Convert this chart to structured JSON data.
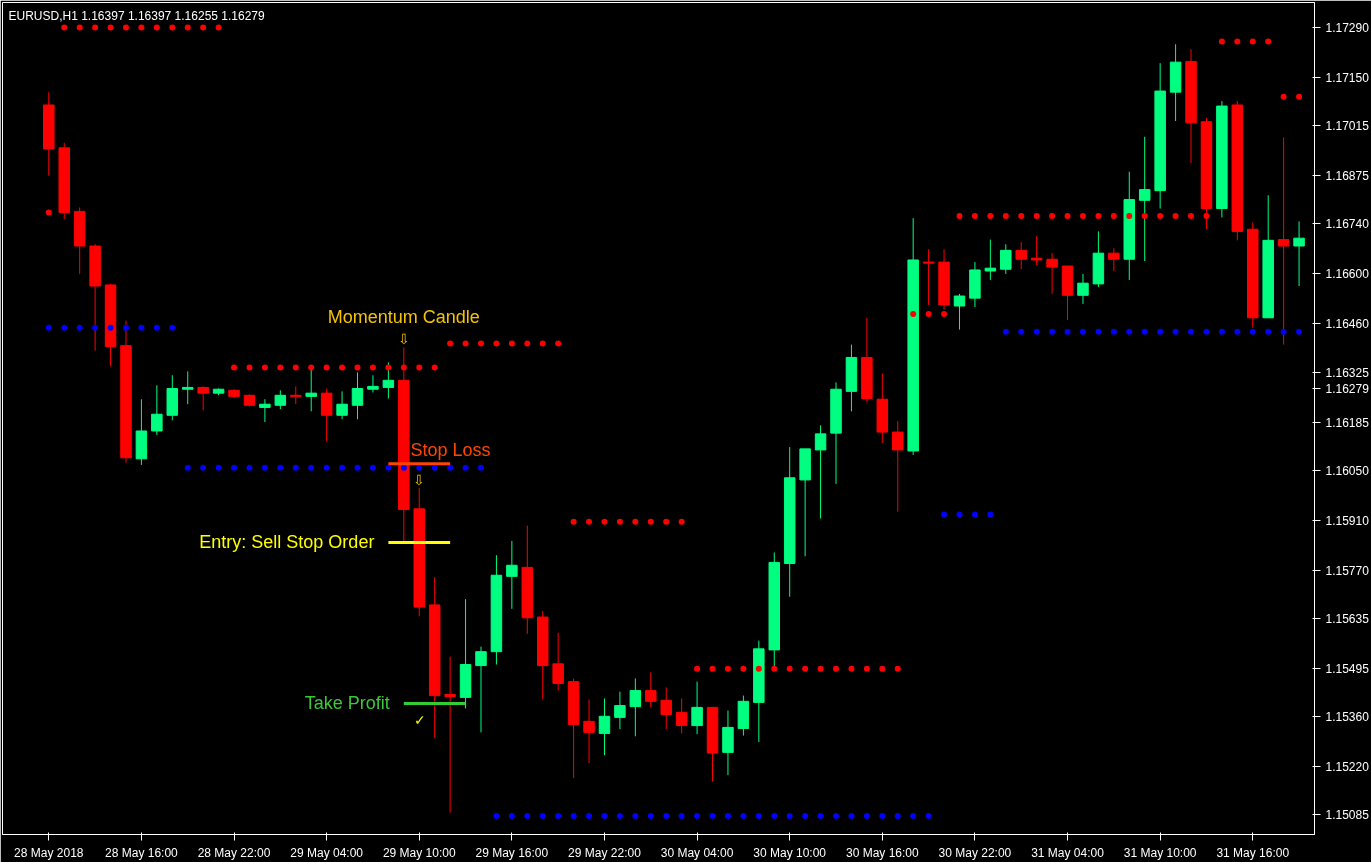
{
  "chart_data": {
    "type": "candlestick",
    "title": "EURUSD,H1  1.16397 1.16397 1.16255 1.16279",
    "x": [
      "2018-05-28T10:00",
      "2018-05-28T11:00",
      "2018-05-28T12:00",
      "2018-05-28T13:00",
      "2018-05-28T14:00",
      "2018-05-28T15:00",
      "2018-05-28T16:00",
      "2018-05-28T17:00",
      "2018-05-28T18:00",
      "2018-05-28T19:00",
      "2018-05-28T20:00",
      "2018-05-28T21:00",
      "2018-05-28T22:00",
      "2018-05-28T23:00",
      "2018-05-29T00:00",
      "2018-05-29T01:00",
      "2018-05-29T02:00",
      "2018-05-29T03:00",
      "2018-05-29T04:00",
      "2018-05-29T05:00",
      "2018-05-29T06:00",
      "2018-05-29T07:00",
      "2018-05-29T08:00",
      "2018-05-29T09:00",
      "2018-05-29T10:00",
      "2018-05-29T11:00",
      "2018-05-29T12:00",
      "2018-05-29T13:00",
      "2018-05-29T14:00",
      "2018-05-29T15:00",
      "2018-05-29T16:00",
      "2018-05-29T17:00",
      "2018-05-29T18:00",
      "2018-05-29T19:00",
      "2018-05-29T20:00",
      "2018-05-29T21:00",
      "2018-05-29T22:00",
      "2018-05-29T23:00",
      "2018-05-30T00:00",
      "2018-05-30T01:00",
      "2018-05-30T02:00",
      "2018-05-30T03:00",
      "2018-05-30T04:00",
      "2018-05-30T05:00",
      "2018-05-30T06:00",
      "2018-05-30T07:00",
      "2018-05-30T08:00",
      "2018-05-30T09:00",
      "2018-05-30T10:00",
      "2018-05-30T11:00",
      "2018-05-30T12:00",
      "2018-05-30T13:00",
      "2018-05-30T14:00",
      "2018-05-30T15:00",
      "2018-05-30T16:00",
      "2018-05-30T17:00",
      "2018-05-30T18:00",
      "2018-05-30T19:00",
      "2018-05-30T20:00",
      "2018-05-30T21:00",
      "2018-05-30T22:00",
      "2018-05-30T23:00",
      "2018-05-31T00:00",
      "2018-05-31T01:00",
      "2018-05-31T02:00",
      "2018-05-31T03:00",
      "2018-05-31T04:00",
      "2018-05-31T05:00",
      "2018-05-31T06:00",
      "2018-05-31T07:00",
      "2018-05-31T08:00",
      "2018-05-31T09:00",
      "2018-05-31T10:00",
      "2018-05-31T11:00",
      "2018-05-31T12:00",
      "2018-05-31T13:00",
      "2018-05-31T14:00",
      "2018-05-31T15:00",
      "2018-05-31T16:00",
      "2018-05-31T17:00",
      "2018-05-31T18:00",
      "2018-05-31T19:00"
    ],
    "ohlc": [
      [
        1.17073,
        1.17109,
        1.16875,
        1.1695
      ],
      [
        1.16953,
        1.16967,
        1.16753,
        1.16772
      ],
      [
        1.16775,
        1.16786,
        1.166,
        1.16678
      ],
      [
        1.16678,
        1.16683,
        1.16385,
        1.16566
      ],
      [
        1.16569,
        1.16572,
        1.16341,
        1.16396
      ],
      [
        1.16399,
        1.16469,
        1.16071,
        1.16085
      ],
      [
        1.16082,
        1.16249,
        1.16065,
        1.1616
      ],
      [
        1.1616,
        1.16288,
        1.16149,
        1.16207
      ],
      [
        1.16204,
        1.16316,
        1.1619,
        1.16279
      ],
      [
        1.16277,
        1.16327,
        1.16235,
        1.16282
      ],
      [
        1.16282,
        1.16285,
        1.16218,
        1.16266
      ],
      [
        1.16266,
        1.16279,
        1.1626,
        1.16277
      ],
      [
        1.16274,
        1.16277,
        1.16252,
        1.16257
      ],
      [
        1.1626,
        1.16263,
        1.16229,
        1.16232
      ],
      [
        1.16226,
        1.16249,
        1.16185,
        1.16235
      ],
      [
        1.16232,
        1.16274,
        1.16221,
        1.1626
      ],
      [
        1.1626,
        1.16285,
        1.16235,
        1.16257
      ],
      [
        1.16257,
        1.16335,
        1.16215,
        1.16266
      ],
      [
        1.16266,
        1.16279,
        1.16131,
        1.16204
      ],
      [
        1.16204,
        1.16271,
        1.16193,
        1.16235
      ],
      [
        1.16232,
        1.16324,
        1.16193,
        1.16279
      ],
      [
        1.16277,
        1.16316,
        1.16268,
        1.16285
      ],
      [
        1.16282,
        1.16352,
        1.16251,
        1.16302
      ],
      [
        1.16302,
        1.16394,
        1.15851,
        1.1594
      ],
      [
        1.15942,
        1.16001,
        1.15641,
        1.15667
      ],
      [
        1.15673,
        1.15751,
        1.153,
        1.15419
      ],
      [
        1.15422,
        1.15528,
        1.15091,
        1.15416
      ],
      [
        1.15414,
        1.15689,
        1.15383,
        1.15506
      ],
      [
        1.15503,
        1.15556,
        1.15316,
        1.15542
      ],
      [
        1.15542,
        1.15812,
        1.15506,
        1.15756
      ],
      [
        1.15753,
        1.15852,
        1.15662,
        1.15784
      ],
      [
        1.15778,
        1.15895,
        1.15592,
        1.15637
      ],
      [
        1.15639,
        1.15656,
        1.15408,
        1.15503
      ],
      [
        1.15508,
        1.15595,
        1.15433,
        1.15453
      ],
      [
        1.15458,
        1.15467,
        1.15188,
        1.15338
      ],
      [
        1.15347,
        1.15408,
        1.1523,
        1.15316
      ],
      [
        1.15313,
        1.15411,
        1.15252,
        1.15361
      ],
      [
        1.15358,
        1.1543,
        1.15325,
        1.15391
      ],
      [
        1.15388,
        1.15467,
        1.15305,
        1.15433
      ],
      [
        1.15433,
        1.15484,
        1.15386,
        1.15403
      ],
      [
        1.15406,
        1.15442,
        1.15325,
        1.15366
      ],
      [
        1.15372,
        1.15411,
        1.15313,
        1.15335
      ],
      [
        1.15335,
        1.15458,
        1.15311,
        1.15386
      ],
      [
        1.15386,
        1.15386,
        1.15178,
        1.15258
      ],
      [
        1.1526,
        1.15377,
        1.15196,
        1.1533
      ],
      [
        1.15327,
        1.15419,
        1.15307,
        1.15403
      ],
      [
        1.154,
        1.15573,
        1.15289,
        1.1555
      ],
      [
        1.15547,
        1.1582,
        1.15497,
        1.15792
      ],
      [
        1.15789,
        1.16115,
        1.15696,
        1.16029
      ],
      [
        1.16023,
        1.1611,
        1.15809,
        1.1611
      ],
      [
        1.16107,
        1.16176,
        1.15915,
        1.16152
      ],
      [
        1.16154,
        1.16296,
        1.16012,
        1.16277
      ],
      [
        1.16271,
        1.16402,
        1.16215,
        1.16366
      ],
      [
        1.16366,
        1.16477,
        1.1624,
        1.16251
      ],
      [
        1.16249,
        1.16321,
        1.16126,
        1.16157
      ],
      [
        1.16157,
        1.16188,
        1.15934,
        1.16107
      ],
      [
        1.16104,
        1.16756,
        1.16093,
        1.16639
      ],
      [
        1.16633,
        1.16669,
        1.16513,
        1.1663
      ],
      [
        1.16633,
        1.16669,
        1.16499,
        1.16513
      ],
      [
        1.1651,
        1.16544,
        1.16444,
        1.16538
      ],
      [
        1.16532,
        1.16633,
        1.16507,
        1.16611
      ],
      [
        1.16608,
        1.16696,
        1.16583,
        1.16616
      ],
      [
        1.16613,
        1.16683,
        1.166,
        1.16666
      ],
      [
        1.16666,
        1.16689,
        1.16613,
        1.16641
      ],
      [
        1.16644,
        1.16706,
        1.16624,
        1.16639
      ],
      [
        1.16641,
        1.16658,
        1.16544,
        1.16619
      ],
      [
        1.16622,
        1.16622,
        1.16471,
        1.1654
      ],
      [
        1.1654,
        1.166,
        1.16516,
        1.16574
      ],
      [
        1.16572,
        1.16719,
        1.16563,
        1.16658
      ],
      [
        1.16658,
        1.16672,
        1.16608,
        1.16641
      ],
      [
        1.16641,
        1.16886,
        1.16583,
        1.16808
      ],
      [
        1.16806,
        1.16984,
        1.16636,
        1.16836
      ],
      [
        1.16833,
        1.1719,
        1.16783,
        1.17112
      ],
      [
        1.17109,
        1.17243,
        1.17028,
        1.17193
      ],
      [
        1.17195,
        1.17229,
        1.16911,
        1.17023
      ],
      [
        1.17026,
        1.17037,
        1.16725,
        1.16783
      ],
      [
        1.16783,
        1.17084,
        1.16758,
        1.1707
      ],
      [
        1.17073,
        1.17084,
        1.16694,
        1.16719
      ],
      [
        1.16725,
        1.16744,
        1.16449,
        1.16477
      ],
      [
        1.16477,
        1.1682,
        1.16477,
        1.16694
      ],
      [
        1.16696,
        1.16982,
        1.16402,
        1.16678
      ],
      [
        1.16678,
        1.16747,
        1.16566,
        1.167
      ]
    ],
    "colors": [
      "#ff0000",
      "#ff0000",
      "#ff0000",
      "#ff0000",
      "#ff0000",
      "#ff0000",
      "#00ff80",
      "#00ff80",
      "#00ff80",
      "#00ff80",
      "#ff0000",
      "#00ff80",
      "#ff0000",
      "#ff0000",
      "#00ff80",
      "#00ff80",
      "#ff0000",
      "#00ff80",
      "#ff0000",
      "#00ff80",
      "#00ff80",
      "#00ff80",
      "#00ff80",
      "#ff0000",
      "#ff0000",
      "#ff0000",
      "#ff0000",
      "#00ff80",
      "#00ff80",
      "#00ff80",
      "#00ff80",
      "#ff0000",
      "#ff0000",
      "#ff0000",
      "#ff0000",
      "#ff0000",
      "#00ff80",
      "#00ff80",
      "#00ff80",
      "#ff0000",
      "#ff0000",
      "#ff0000",
      "#00ff80",
      "#ff0000",
      "#00ff80",
      "#00ff80",
      "#00ff80",
      "#00ff80",
      "#00ff80",
      "#00ff80",
      "#00ff80",
      "#00ff80",
      "#00ff80",
      "#ff0000",
      "#ff0000",
      "#ff0000",
      "#00ff80",
      "#ff0000",
      "#ff0000",
      "#00ff80",
      "#00ff80",
      "#00ff80",
      "#00ff80",
      "#ff0000",
      "#ff0000",
      "#ff0000",
      "#ff0000",
      "#00ff80",
      "#00ff80",
      "#ff0000",
      "#00ff80",
      "#00ff80",
      "#00ff80",
      "#00ff80",
      "#ff0000",
      "#ff0000",
      "#00ff80",
      "#ff0000",
      "#ff0000",
      "#00ff80",
      "#ff0000",
      "#00ff80"
    ],
    "series": [
      {
        "type": "scatter",
        "marker": "circle",
        "color": "#ff0000",
        "x": [
          "2018-05-28T11:00",
          "2018-05-28T12:00",
          "2018-05-28T13:00",
          "2018-05-28T14:00",
          "2018-05-28T15:00",
          "2018-05-28T16:00",
          "2018-05-28T17:00",
          "2018-05-28T18:00",
          "2018-05-28T19:00",
          "2018-05-28T20:00",
          "2018-05-28T21:00"
        ],
        "values": [
          1.1729,
          1.1729,
          1.1729,
          1.1729,
          1.1729,
          1.1729,
          1.1729,
          1.1729,
          1.1729,
          1.1729,
          1.1729
        ]
      },
      {
        "type": "scatter",
        "marker": "circle",
        "color": "#ff0000",
        "x": [
          "2018-05-28T10:00"
        ],
        "values": [
          1.16772
        ]
      },
      {
        "type": "scatter",
        "marker": "circle",
        "color": "#ff0000",
        "x": [
          "2018-05-28T22:00",
          "2018-05-28T23:00",
          "2018-05-29T00:00",
          "2018-05-29T01:00",
          "2018-05-29T02:00",
          "2018-05-29T03:00",
          "2018-05-29T04:00",
          "2018-05-29T05:00",
          "2018-05-29T06:00",
          "2018-05-29T07:00",
          "2018-05-29T08:00",
          "2018-05-29T09:00",
          "2018-05-29T10:00",
          "2018-05-29T11:00"
        ],
        "values": [
          1.16338,
          1.16338,
          1.16338,
          1.16338,
          1.16338,
          1.16338,
          1.16338,
          1.16338,
          1.16338,
          1.16338,
          1.16338,
          1.16338,
          1.16338,
          1.16338
        ]
      },
      {
        "type": "scatter",
        "marker": "circle",
        "color": "#ff0000",
        "x": [
          "2018-05-29T12:00",
          "2018-05-29T13:00",
          "2018-05-29T14:00",
          "2018-05-29T15:00",
          "2018-05-29T16:00",
          "2018-05-29T17:00",
          "2018-05-29T18:00",
          "2018-05-29T19:00"
        ],
        "values": [
          1.16405,
          1.16405,
          1.16405,
          1.16405,
          1.16405,
          1.16405,
          1.16405,
          1.16405
        ]
      },
      {
        "type": "scatter",
        "marker": "circle",
        "color": "#ff0000",
        "x": [
          "2018-05-29T20:00",
          "2018-05-29T21:00",
          "2018-05-29T22:00",
          "2018-05-29T23:00",
          "2018-05-30T00:00",
          "2018-05-30T01:00",
          "2018-05-30T02:00",
          "2018-05-30T03:00"
        ],
        "values": [
          1.15906,
          1.15906,
          1.15906,
          1.15906,
          1.15906,
          1.15906,
          1.15906,
          1.15906
        ]
      },
      {
        "type": "scatter",
        "marker": "circle",
        "color": "#ff0000",
        "x": [
          "2018-05-30T04:00",
          "2018-05-30T05:00",
          "2018-05-30T06:00",
          "2018-05-30T07:00",
          "2018-05-30T08:00",
          "2018-05-30T09:00",
          "2018-05-30T10:00",
          "2018-05-30T11:00",
          "2018-05-30T12:00",
          "2018-05-30T13:00",
          "2018-05-30T14:00",
          "2018-05-30T15:00",
          "2018-05-30T16:00",
          "2018-05-30T17:00"
        ],
        "values": [
          1.15494,
          1.15494,
          1.15494,
          1.15494,
          1.15494,
          1.15494,
          1.15494,
          1.15494,
          1.15494,
          1.15494,
          1.15494,
          1.15494,
          1.15494,
          1.15494
        ]
      },
      {
        "type": "scatter",
        "marker": "circle",
        "color": "#ff0000",
        "x": [
          "2018-05-30T18:00",
          "2018-05-30T19:00",
          "2018-05-30T20:00"
        ],
        "values": [
          1.16488,
          1.16488,
          1.16488
        ]
      },
      {
        "type": "scatter",
        "marker": "circle",
        "color": "#ff0000",
        "x": [
          "2018-05-30T21:00",
          "2018-05-30T22:00",
          "2018-05-30T23:00",
          "2018-05-31T00:00",
          "2018-05-31T01:00",
          "2018-05-31T02:00",
          "2018-05-31T03:00",
          "2018-05-31T04:00",
          "2018-05-31T05:00",
          "2018-05-31T06:00",
          "2018-05-31T07:00",
          "2018-05-31T08:00",
          "2018-05-31T09:00",
          "2018-05-31T10:00",
          "2018-05-31T11:00",
          "2018-05-31T12:00",
          "2018-05-31T13:00"
        ],
        "values": [
          1.16762,
          1.16762,
          1.16762,
          1.16762,
          1.16762,
          1.16762,
          1.16762,
          1.16762,
          1.16762,
          1.16762,
          1.16762,
          1.16762,
          1.16762,
          1.16762,
          1.16762,
          1.16762,
          1.16762
        ]
      },
      {
        "type": "scatter",
        "marker": "circle",
        "color": "#ff0000",
        "x": [
          "2018-05-31T14:00",
          "2018-05-31T15:00",
          "2018-05-31T16:00",
          "2018-05-31T17:00"
        ],
        "values": [
          1.17251,
          1.17251,
          1.17251,
          1.17251
        ]
      },
      {
        "type": "scatter",
        "marker": "circle",
        "color": "#ff0000",
        "x": [
          "2018-05-31T18:00",
          "2018-05-31T19:00"
        ],
        "values": [
          1.17096,
          1.17096
        ]
      },
      {
        "type": "scatter",
        "marker": "circle",
        "color": "#0000ff",
        "x": [
          "2018-05-28T10:00",
          "2018-05-28T11:00",
          "2018-05-28T12:00",
          "2018-05-28T13:00",
          "2018-05-28T14:00",
          "2018-05-28T15:00",
          "2018-05-28T16:00",
          "2018-05-28T17:00",
          "2018-05-28T18:00"
        ],
        "values": [
          1.16449,
          1.16449,
          1.16449,
          1.16449,
          1.16449,
          1.16449,
          1.16449,
          1.16449,
          1.16449
        ]
      },
      {
        "type": "scatter",
        "marker": "circle",
        "color": "#0000ff",
        "x": [
          "2018-05-28T19:00",
          "2018-05-28T20:00",
          "2018-05-28T21:00",
          "2018-05-28T22:00",
          "2018-05-28T23:00",
          "2018-05-29T00:00",
          "2018-05-29T01:00",
          "2018-05-29T02:00",
          "2018-05-29T03:00",
          "2018-05-29T04:00",
          "2018-05-29T05:00",
          "2018-05-29T06:00",
          "2018-05-29T07:00",
          "2018-05-29T08:00",
          "2018-05-29T09:00",
          "2018-05-29T10:00",
          "2018-05-29T11:00",
          "2018-05-29T12:00",
          "2018-05-29T13:00",
          "2018-05-29T14:00"
        ],
        "values": [
          1.16057,
          1.16057,
          1.16057,
          1.16057,
          1.16057,
          1.16057,
          1.16057,
          1.16057,
          1.16057,
          1.16057,
          1.16057,
          1.16057,
          1.16057,
          1.16057,
          1.16057,
          1.16057,
          1.16057,
          1.16057,
          1.16057,
          1.16057
        ]
      },
      {
        "type": "scatter",
        "marker": "circle",
        "color": "#0000ff",
        "x": [
          "2018-05-29T15:00",
          "2018-05-29T16:00",
          "2018-05-29T17:00",
          "2018-05-29T18:00",
          "2018-05-29T19:00",
          "2018-05-29T20:00",
          "2018-05-29T21:00",
          "2018-05-29T22:00",
          "2018-05-29T23:00",
          "2018-05-30T00:00",
          "2018-05-30T01:00",
          "2018-05-30T02:00",
          "2018-05-30T03:00",
          "2018-05-30T04:00",
          "2018-05-30T05:00",
          "2018-05-30T06:00",
          "2018-05-30T07:00",
          "2018-05-30T08:00",
          "2018-05-30T09:00",
          "2018-05-30T10:00",
          "2018-05-30T11:00",
          "2018-05-30T12:00",
          "2018-05-30T13:00",
          "2018-05-30T14:00",
          "2018-05-30T15:00",
          "2018-05-30T16:00",
          "2018-05-30T17:00",
          "2018-05-30T18:00",
          "2018-05-30T19:00"
        ],
        "values": [
          1.15082,
          1.15082,
          1.15082,
          1.15082,
          1.15082,
          1.15082,
          1.15082,
          1.15082,
          1.15082,
          1.15082,
          1.15082,
          1.15082,
          1.15082,
          1.15082,
          1.15082,
          1.15082,
          1.15082,
          1.15082,
          1.15082,
          1.15082,
          1.15082,
          1.15082,
          1.15082,
          1.15082,
          1.15082,
          1.15082,
          1.15082,
          1.15082,
          1.15082
        ]
      },
      {
        "type": "scatter",
        "marker": "circle",
        "color": "#0000ff",
        "x": [
          "2018-05-30T20:00",
          "2018-05-30T21:00",
          "2018-05-30T22:00",
          "2018-05-30T23:00"
        ],
        "values": [
          1.15926,
          1.15926,
          1.15926,
          1.15926
        ]
      },
      {
        "type": "scatter",
        "marker": "circle",
        "color": "#0000ff",
        "x": [
          "2018-05-31T00:00",
          "2018-05-31T01:00",
          "2018-05-31T02:00",
          "2018-05-31T03:00",
          "2018-05-31T04:00",
          "2018-05-31T05:00",
          "2018-05-31T06:00",
          "2018-05-31T07:00",
          "2018-05-31T08:00",
          "2018-05-31T09:00",
          "2018-05-31T10:00",
          "2018-05-31T11:00",
          "2018-05-31T12:00",
          "2018-05-31T13:00",
          "2018-05-31T14:00",
          "2018-05-31T15:00",
          "2018-05-31T16:00",
          "2018-05-31T17:00",
          "2018-05-31T18:00",
          "2018-05-31T19:00"
        ],
        "values": [
          1.16438,
          1.16438,
          1.16438,
          1.16438,
          1.16438,
          1.16438,
          1.16438,
          1.16438,
          1.16438,
          1.16438,
          1.16438,
          1.16438,
          1.16438,
          1.16438,
          1.16438,
          1.16438,
          1.16438,
          1.16438,
          1.16438,
          1.16438
        ]
      },
      {
        "type": "line",
        "color": "#ff4500",
        "x": [
          "2018-05-29T08:00",
          "2018-05-29T12:00"
        ],
        "values": [
          1.16068,
          1.16068
        ]
      },
      {
        "type": "line",
        "color": "#ffff00",
        "x": [
          "2018-05-29T08:00",
          "2018-05-29T12:00"
        ],
        "values": [
          1.15848,
          1.15848
        ]
      },
      {
        "type": "line",
        "color": "#32cd32",
        "x": [
          "2018-05-29T09:00",
          "2018-05-29T13:00"
        ],
        "values": [
          1.15397,
          1.15397
        ]
      }
    ],
    "annotations": [
      {
        "text": "Momentum Candle",
        "x": "2018-05-29T09:00",
        "y": 1.16394
      },
      {
        "text": "Stop Loss",
        "x": "2018-05-29T08:00",
        "y": 1.16068
      },
      {
        "text": "Entry: Sell Stop Order",
        "x": "2018-05-29T08:00",
        "y": 1.15848
      },
      {
        "text": "Take Profit",
        "x": "2018-05-29T09:00",
        "y": 1.15397
      },
      {
        "text": "⇩",
        "x": "2018-05-29T09:00",
        "y": 1.16394
      },
      {
        "text": "⇩",
        "x": "2018-05-29T10:00",
        "y": 1.16001
      },
      {
        "text": "✓",
        "x": "2018-05-29T09:00",
        "y": 1.15397
      }
    ],
    "xlim": [
      "2018-05-28T07:00",
      "2018-05-31T20:00"
    ],
    "xticks": [
      {
        "value": "2018-05-28T10:00",
        "label": "28 May 2018"
      },
      {
        "value": "2018-05-28T16:00",
        "label": "28 May 16:00"
      },
      {
        "value": "2018-05-28T22:00",
        "label": "28 May 22:00"
      },
      {
        "value": "2018-05-29T04:00",
        "label": "29 May 04:00"
      },
      {
        "value": "2018-05-29T10:00",
        "label": "29 May 10:00"
      },
      {
        "value": "2018-05-29T16:00",
        "label": "29 May 16:00"
      },
      {
        "value": "2018-05-29T22:00",
        "label": "29 May 22:00"
      },
      {
        "value": "2018-05-30T04:00",
        "label": "30 May 04:00"
      },
      {
        "value": "2018-05-30T10:00",
        "label": "30 May 10:00"
      },
      {
        "value": "2018-05-30T16:00",
        "label": "30 May 16:00"
      },
      {
        "value": "2018-05-30T22:00",
        "label": "30 May 22:00"
      },
      {
        "value": "2018-05-31T04:00",
        "label": "31 May 04:00"
      },
      {
        "value": "2018-05-31T10:00",
        "label": "31 May 10:00"
      },
      {
        "value": "2018-05-31T16:00",
        "label": "31 May 16:00"
      }
    ],
    "ylim": [
      1.1503,
      1.1736
    ],
    "yticks": [
      {
        "value": 1.1729,
        "label": "1.17290"
      },
      {
        "value": 1.1715,
        "label": "1.17150"
      },
      {
        "value": 1.17015,
        "label": "1.17015"
      },
      {
        "value": 1.16875,
        "label": "1.16875"
      },
      {
        "value": 1.1674,
        "label": "1.16740"
      },
      {
        "value": 1.166,
        "label": "1.16600"
      },
      {
        "value": 1.1646,
        "label": "1.16460"
      },
      {
        "value": 1.16325,
        "label": "1.16325"
      },
      {
        "value": 1.16279,
        "label": "1.16279"
      },
      {
        "value": 1.16185,
        "label": "1.16185"
      },
      {
        "value": 1.1605,
        "label": "1.16050"
      },
      {
        "value": 1.1591,
        "label": "1.15910"
      },
      {
        "value": 1.1577,
        "label": "1.15770"
      },
      {
        "value": 1.15635,
        "label": "1.15635"
      },
      {
        "value": 1.15495,
        "label": "1.15495"
      },
      {
        "value": 1.1536,
        "label": "1.15360"
      },
      {
        "value": 1.1522,
        "label": "1.15220"
      },
      {
        "value": 1.15085,
        "label": "1.15085"
      }
    ]
  }
}
